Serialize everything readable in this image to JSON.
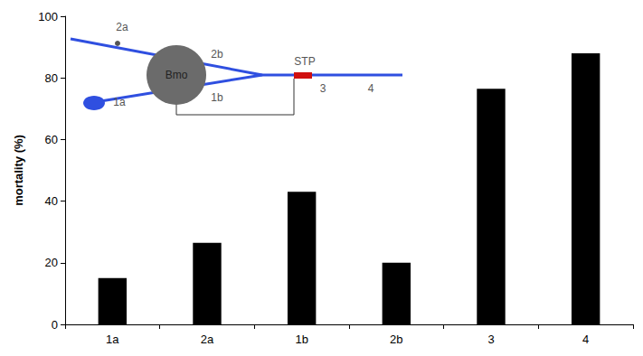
{
  "chart_data": {
    "type": "bar",
    "categories": [
      "1a",
      "2a",
      "1b",
      "2b",
      "3",
      "4"
    ],
    "values": [
      15,
      26.5,
      43,
      20,
      76.5,
      88
    ],
    "color": "#000000",
    "y_label": "mortality (%)",
    "ylim": [
      0,
      100
    ],
    "yticks": [
      0,
      20,
      40,
      60,
      80,
      100
    ],
    "grid": false,
    "diagram_labels": [
      "2a",
      "2b",
      "Bmo",
      "1a",
      "1b",
      "STP",
      "3",
      "4"
    ]
  }
}
